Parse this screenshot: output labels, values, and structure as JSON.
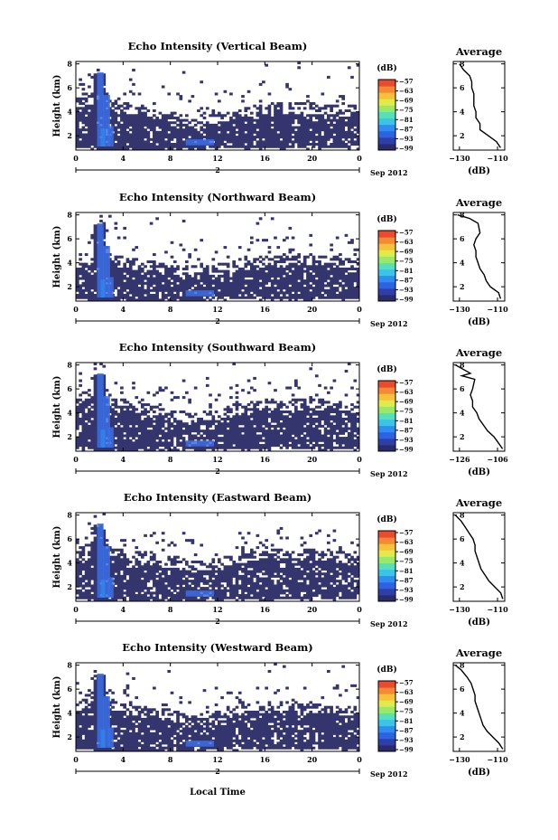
{
  "colors": {
    "colormap": [
      "#2a2b6b",
      "#2f3fa8",
      "#2f62e0",
      "#2f8cf0",
      "#3bc4e8",
      "#55e0b8",
      "#9ae86a",
      "#e0ea4a",
      "#f7c23a",
      "#f48a35",
      "#ea4a2e"
    ],
    "echo_base": "#35356e",
    "echo_strong": "#3b6fe6"
  },
  "shared": {
    "ylabel": "Height (km)",
    "ytick_labels": [
      "2",
      "4",
      "6",
      "8"
    ],
    "xtick_labels": [
      "0",
      "4",
      "8",
      "12",
      "16",
      "20",
      "0"
    ],
    "date_day": "2",
    "date_label": "Sep 2012",
    "colorbar_unit": "(dB)",
    "colorbar_ticks": [
      "−57",
      "−63",
      "−69",
      "−75",
      "−81",
      "−87",
      "−93",
      "−99"
    ],
    "profile_title": "Average",
    "profile_xlabel": "(dB)",
    "xlabel": "Local Time"
  },
  "chart_data": [
    {
      "type": "heatmap",
      "title": "Echo Intensity (Vertical Beam)",
      "xlim": [
        0,
        24
      ],
      "ylim": [
        0.8,
        8.2
      ],
      "colorbar_range": [
        -99,
        -57
      ],
      "echo_top": [
        [
          0,
          4.9
        ],
        [
          1.5,
          5.3
        ],
        [
          2,
          6.2
        ],
        [
          3,
          4.7
        ],
        [
          6,
          4.2
        ],
        [
          8,
          3.8
        ],
        [
          9,
          3.6
        ],
        [
          10,
          3.3
        ],
        [
          12,
          3.7
        ],
        [
          14,
          4.1
        ],
        [
          16,
          4.4
        ],
        [
          18,
          4.5
        ],
        [
          20,
          4.4
        ],
        [
          22,
          4.3
        ],
        [
          24,
          4.2
        ]
      ],
      "profile": {
        "title": "Average",
        "xlabel": "(dB)",
        "xlim": [
          -130,
          -105
        ],
        "xtick_labels": [
          "−130",
          "−110"
        ],
        "ytick_labels": [
          "2",
          "4",
          "6",
          "8"
        ],
        "points": [
          [
            -127,
            8
          ],
          [
            -125,
            7.5
          ],
          [
            -122,
            7
          ],
          [
            -121,
            6.5
          ],
          [
            -121,
            6
          ],
          [
            -120,
            5.5
          ],
          [
            -120,
            5
          ],
          [
            -120,
            4.5
          ],
          [
            -119,
            4
          ],
          [
            -119,
            3.5
          ],
          [
            -117,
            3
          ],
          [
            -117,
            2.5
          ],
          [
            -113,
            2
          ],
          [
            -109,
            1.5
          ],
          [
            -107,
            1
          ]
        ]
      }
    },
    {
      "type": "heatmap",
      "title": "Echo Intensity (Northward Beam)",
      "xlim": [
        0,
        24
      ],
      "ylim": [
        0.8,
        8.2
      ],
      "colorbar_range": [
        -99,
        -57
      ],
      "echo_top": [
        [
          0,
          4.2
        ],
        [
          1.5,
          4.6
        ],
        [
          2,
          6.3
        ],
        [
          3,
          4.4
        ],
        [
          6,
          3.9
        ],
        [
          8,
          3.6
        ],
        [
          10,
          3.4
        ],
        [
          12,
          3.6
        ],
        [
          14,
          4.0
        ],
        [
          16,
          4.3
        ],
        [
          18,
          4.3
        ],
        [
          20,
          4.4
        ],
        [
          22,
          4.3
        ],
        [
          24,
          4.1
        ]
      ],
      "profile": {
        "title": "Average",
        "xlabel": "(dB)",
        "xlim": [
          -130,
          -105
        ],
        "xtick_labels": [
          "−130",
          "−110"
        ],
        "ytick_labels": [
          "2",
          "4",
          "6",
          "8"
        ],
        "points": [
          [
            -128,
            8
          ],
          [
            -122,
            7.7
          ],
          [
            -118,
            7.3
          ],
          [
            -117,
            6.5
          ],
          [
            -119,
            6
          ],
          [
            -120,
            5.5
          ],
          [
            -119,
            5
          ],
          [
            -119,
            4.5
          ],
          [
            -118,
            4
          ],
          [
            -117,
            3.5
          ],
          [
            -115,
            3
          ],
          [
            -114,
            2.5
          ],
          [
            -112,
            2
          ],
          [
            -108,
            1.5
          ],
          [
            -107,
            1
          ]
        ]
      }
    },
    {
      "type": "heatmap",
      "title": "Echo Intensity (Southward Beam)",
      "xlim": [
        0,
        24
      ],
      "ylim": [
        0.8,
        8.2
      ],
      "colorbar_range": [
        -99,
        -57
      ],
      "echo_top": [
        [
          0,
          5.2
        ],
        [
          1.5,
          5.8
        ],
        [
          2,
          6.7
        ],
        [
          3,
          5.0
        ],
        [
          6,
          4.5
        ],
        [
          8,
          4.0
        ],
        [
          10,
          3.7
        ],
        [
          12,
          4.0
        ],
        [
          14,
          4.5
        ],
        [
          16,
          4.8
        ],
        [
          18,
          4.8
        ],
        [
          20,
          4.9
        ],
        [
          22,
          4.7
        ],
        [
          24,
          4.6
        ]
      ],
      "profile": {
        "title": "Average",
        "xlabel": "(dB)",
        "xlim": [
          -128,
          -104
        ],
        "xtick_labels": [
          "−126",
          "−106"
        ],
        "ytick_labels": [
          "2",
          "4",
          "6",
          "8"
        ],
        "points": [
          [
            -127,
            8
          ],
          [
            -120,
            7.3
          ],
          [
            -124,
            7.1
          ],
          [
            -118,
            6.8
          ],
          [
            -119,
            6
          ],
          [
            -120,
            5.5
          ],
          [
            -119,
            5
          ],
          [
            -119,
            4.5
          ],
          [
            -117,
            4
          ],
          [
            -116,
            3.5
          ],
          [
            -114,
            3
          ],
          [
            -112,
            2.5
          ],
          [
            -109,
            2
          ],
          [
            -107,
            1.5
          ],
          [
            -105,
            1
          ]
        ]
      }
    },
    {
      "type": "heatmap",
      "title": "Echo Intensity (Eastward Beam)",
      "xlim": [
        0,
        24
      ],
      "ylim": [
        0.8,
        8.2
      ],
      "colorbar_range": [
        -99,
        -57
      ],
      "echo_top": [
        [
          0,
          5.0
        ],
        [
          1.5,
          5.8
        ],
        [
          2,
          7.0
        ],
        [
          3,
          5.0
        ],
        [
          6,
          4.5
        ],
        [
          8,
          4.2
        ],
        [
          10,
          3.9
        ],
        [
          12,
          4.1
        ],
        [
          14,
          4.6
        ],
        [
          16,
          5.0
        ],
        [
          18,
          5.0
        ],
        [
          20,
          4.9
        ],
        [
          22,
          4.7
        ],
        [
          24,
          4.5
        ]
      ],
      "profile": {
        "title": "Average",
        "xlabel": "(dB)",
        "xlim": [
          -132,
          -106
        ],
        "xtick_labels": [
          "−130",
          "−110"
        ],
        "ytick_labels": [
          "2",
          "4",
          "6",
          "8"
        ],
        "points": [
          [
            -131,
            8
          ],
          [
            -128,
            7.5
          ],
          [
            -126,
            7
          ],
          [
            -124,
            6.5
          ],
          [
            -122,
            6
          ],
          [
            -121,
            5.5
          ],
          [
            -121,
            5
          ],
          [
            -120,
            4.5
          ],
          [
            -119,
            4
          ],
          [
            -118,
            3.5
          ],
          [
            -116,
            3
          ],
          [
            -114,
            2.5
          ],
          [
            -111,
            2
          ],
          [
            -108,
            1.5
          ],
          [
            -107,
            1
          ]
        ]
      }
    },
    {
      "type": "heatmap",
      "title": "Echo Intensity (Westward Beam)",
      "xlim": [
        0,
        24
      ],
      "ylim": [
        0.8,
        8.2
      ],
      "colorbar_range": [
        -99,
        -57
      ],
      "echo_top": [
        [
          0,
          4.9
        ],
        [
          1.5,
          5.5
        ],
        [
          2,
          6.7
        ],
        [
          3,
          4.7
        ],
        [
          6,
          4.2
        ],
        [
          8,
          4.0
        ],
        [
          10,
          3.7
        ],
        [
          12,
          3.9
        ],
        [
          14,
          4.4
        ],
        [
          16,
          4.7
        ],
        [
          18,
          4.6
        ],
        [
          20,
          4.6
        ],
        [
          22,
          4.5
        ],
        [
          24,
          4.3
        ]
      ],
      "profile": {
        "title": "Average",
        "xlabel": "(dB)",
        "xlim": [
          -132,
          -106
        ],
        "xtick_labels": [
          "−130",
          "−110"
        ],
        "ytick_labels": [
          "2",
          "4",
          "6",
          "8"
        ],
        "points": [
          [
            -131,
            8
          ],
          [
            -128,
            7.6
          ],
          [
            -125,
            7
          ],
          [
            -123,
            6.5
          ],
          [
            -122,
            6
          ],
          [
            -121,
            5.5
          ],
          [
            -121,
            5
          ],
          [
            -120,
            4.5
          ],
          [
            -119,
            4
          ],
          [
            -118,
            3.5
          ],
          [
            -117,
            3
          ],
          [
            -115,
            2.5
          ],
          [
            -112,
            2
          ],
          [
            -109,
            1.5
          ],
          [
            -107,
            1
          ]
        ]
      }
    }
  ]
}
